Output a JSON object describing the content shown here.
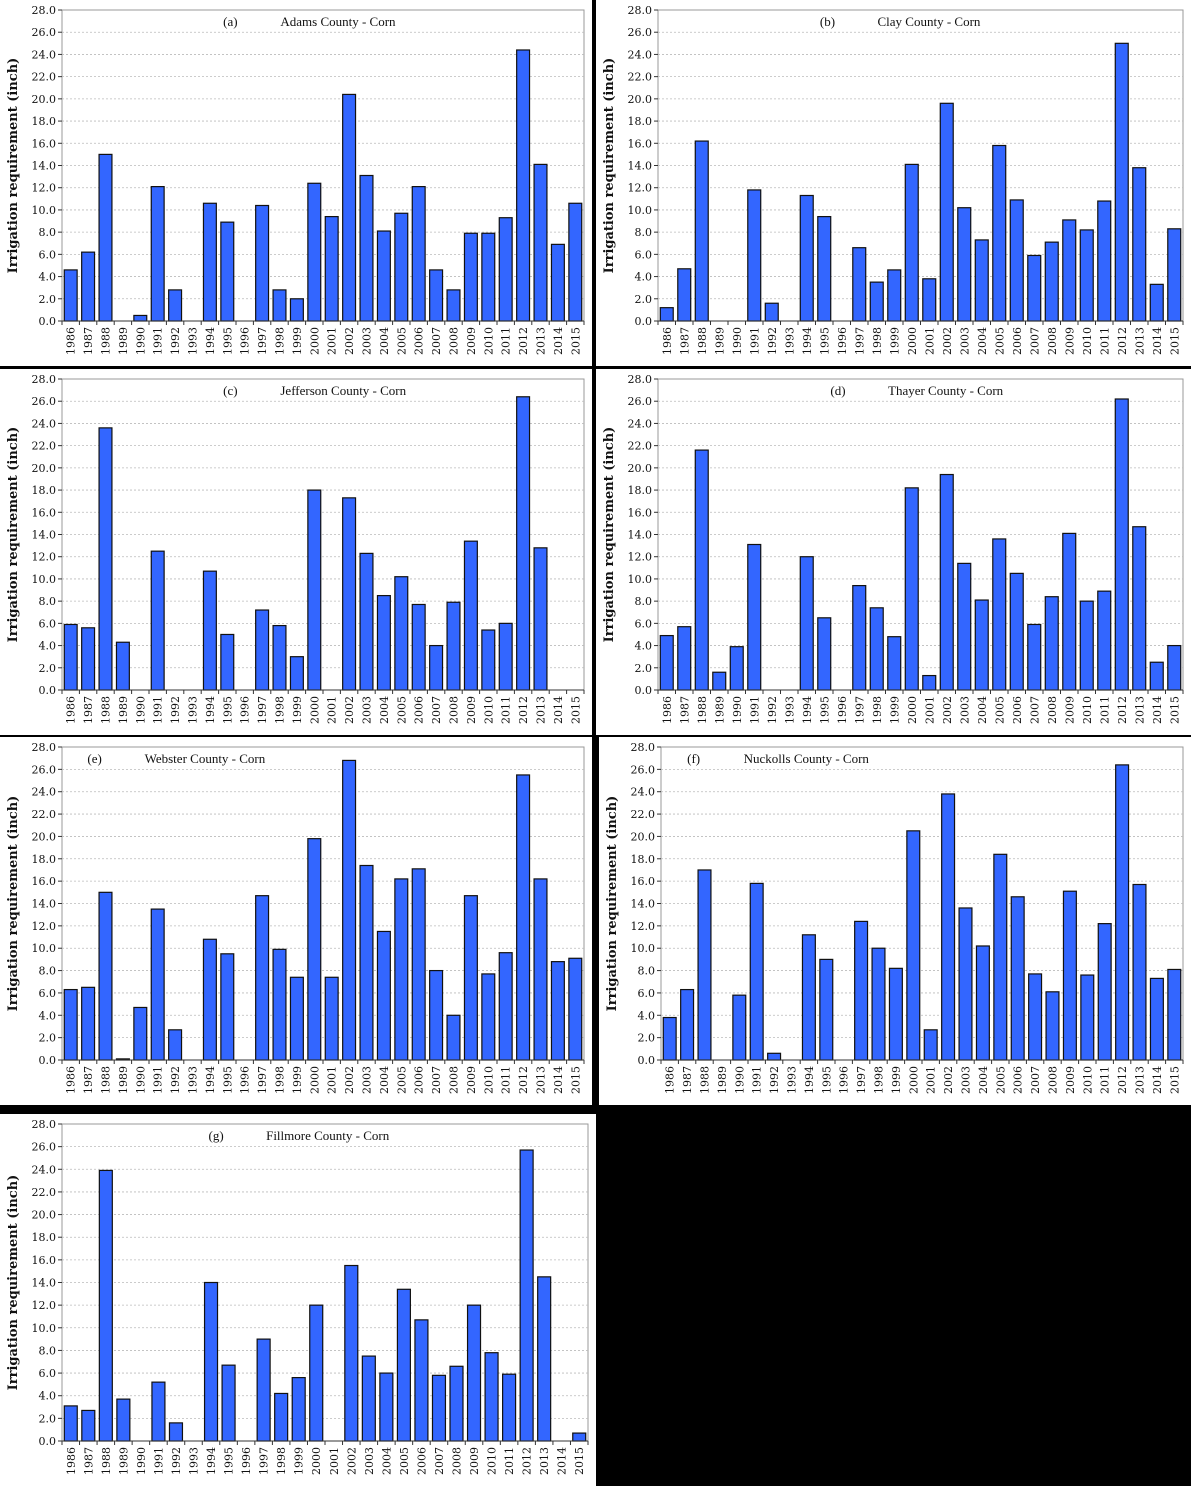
{
  "figure": {
    "ylabel": "Irrigation requirement (inch)",
    "bar_color": "#3366FF",
    "bar_stroke": "#111111",
    "grid_color": "#BBBBBB",
    "yticks": [
      "0.0",
      "2.0",
      "4.0",
      "6.0",
      "8.0",
      "10.0",
      "12.0",
      "14.0",
      "16.0",
      "18.0",
      "20.0",
      "22.0",
      "24.0",
      "26.0",
      "28.0"
    ]
  },
  "chart_data": [
    {
      "type": "bar",
      "panel": "(a)",
      "title": "Adams County - Corn",
      "xlabel": "",
      "ylabel": "Irrigation requirement (inch)",
      "ylim": [
        0,
        28
      ],
      "grid": true,
      "categories": [
        "1986",
        "1987",
        "1988",
        "1989",
        "1990",
        "1991",
        "1992",
        "1993",
        "1994",
        "1995",
        "1996",
        "1997",
        "1998",
        "1999",
        "2000",
        "2001",
        "2002",
        "2003",
        "2004",
        "2005",
        "2006",
        "2007",
        "2008",
        "2009",
        "2010",
        "2011",
        "2012",
        "2013",
        "2014",
        "2015"
      ],
      "values": [
        4.6,
        6.2,
        15.0,
        0,
        0.5,
        12.1,
        2.8,
        0,
        10.6,
        8.9,
        0,
        10.4,
        2.8,
        2.0,
        12.4,
        9.4,
        20.4,
        13.1,
        8.1,
        9.7,
        12.1,
        4.6,
        2.8,
        7.9,
        7.9,
        9.3,
        24.4,
        14.1,
        6.9,
        10.6
      ]
    },
    {
      "type": "bar",
      "panel": "(b)",
      "title": "Clay County - Corn",
      "xlabel": "",
      "ylabel": "Irrigation requirement (inch)",
      "ylim": [
        0,
        28
      ],
      "grid": true,
      "categories": [
        "1986",
        "1987",
        "1988",
        "1989",
        "1990",
        "1991",
        "1992",
        "1993",
        "1994",
        "1995",
        "1996",
        "1997",
        "1998",
        "1999",
        "2000",
        "2001",
        "2002",
        "2003",
        "2004",
        "2005",
        "2006",
        "2007",
        "2008",
        "2009",
        "2010",
        "2011",
        "2012",
        "2013",
        "2014",
        "2015"
      ],
      "values": [
        1.2,
        4.7,
        16.2,
        0,
        0,
        11.8,
        1.6,
        0,
        11.3,
        9.4,
        0,
        6.6,
        3.5,
        4.6,
        14.1,
        3.8,
        19.6,
        10.2,
        7.3,
        15.8,
        10.9,
        5.9,
        7.1,
        9.1,
        8.2,
        10.8,
        25.0,
        13.8,
        3.3,
        8.3
      ]
    },
    {
      "type": "bar",
      "panel": "(c)",
      "title": "Jefferson County - Corn",
      "xlabel": "",
      "ylabel": "Irrigation requirement (inch)",
      "ylim": [
        0,
        28
      ],
      "grid": true,
      "categories": [
        "1986",
        "1987",
        "1988",
        "1989",
        "1990",
        "1991",
        "1992",
        "1993",
        "1994",
        "1995",
        "1996",
        "1997",
        "1998",
        "1999",
        "2000",
        "2001",
        "2002",
        "2003",
        "2004",
        "2005",
        "2006",
        "2007",
        "2008",
        "2009",
        "2010",
        "2011",
        "2012",
        "2013",
        "2014",
        "2015"
      ],
      "values": [
        5.9,
        5.6,
        23.6,
        4.3,
        0,
        12.5,
        0,
        0,
        10.7,
        5.0,
        0,
        7.2,
        5.8,
        3.0,
        18.0,
        0,
        17.3,
        12.3,
        8.5,
        10.2,
        7.7,
        4.0,
        7.9,
        13.4,
        5.4,
        6.0,
        26.4,
        12.8,
        0,
        0
      ]
    },
    {
      "type": "bar",
      "panel": "(d)",
      "title": "Thayer County - Corn",
      "xlabel": "",
      "ylabel": "Irrigation requirement (inch)",
      "ylim": [
        0,
        28
      ],
      "grid": true,
      "categories": [
        "1986",
        "1987",
        "1988",
        "1989",
        "1990",
        "1991",
        "1992",
        "1993",
        "1994",
        "1995",
        "1996",
        "1997",
        "1998",
        "1999",
        "2000",
        "2001",
        "2002",
        "2003",
        "2004",
        "2005",
        "2006",
        "2007",
        "2008",
        "2009",
        "2010",
        "2011",
        "2012",
        "2013",
        "2014",
        "2015"
      ],
      "values": [
        4.9,
        5.7,
        21.6,
        1.6,
        3.9,
        13.1,
        0,
        0,
        12.0,
        6.5,
        0,
        9.4,
        7.4,
        4.8,
        18.2,
        1.3,
        19.4,
        11.4,
        8.1,
        13.6,
        10.5,
        5.9,
        8.4,
        14.1,
        8.0,
        8.9,
        26.2,
        14.7,
        2.5,
        4.0
      ]
    },
    {
      "type": "bar",
      "panel": "(e)",
      "title": "Webster County - Corn",
      "xlabel": "",
      "ylabel": "Irrigation requirement (inch)",
      "ylim": [
        0,
        28
      ],
      "grid": true,
      "categories": [
        "1986",
        "1987",
        "1988",
        "1989",
        "1990",
        "1991",
        "1992",
        "1993",
        "1994",
        "1995",
        "1996",
        "1997",
        "1998",
        "1999",
        "2000",
        "2001",
        "2002",
        "2003",
        "2004",
        "2005",
        "2006",
        "2007",
        "2008",
        "2009",
        "2010",
        "2011",
        "2012",
        "2013",
        "2014",
        "2015"
      ],
      "values": [
        6.3,
        6.5,
        15.0,
        0.1,
        4.7,
        13.5,
        2.7,
        0,
        10.8,
        9.5,
        0,
        14.7,
        9.9,
        7.4,
        19.8,
        7.4,
        26.8,
        17.4,
        11.5,
        16.2,
        17.1,
        8.0,
        4.0,
        14.7,
        7.7,
        9.6,
        25.5,
        16.2,
        8.8,
        9.1
      ]
    },
    {
      "type": "bar",
      "panel": "(f)",
      "title": "Nuckolls County - Corn",
      "xlabel": "",
      "ylabel": "Irrigation requirement (inch)",
      "ylim": [
        0,
        28
      ],
      "grid": true,
      "categories": [
        "1986",
        "1987",
        "1988",
        "1989",
        "1990",
        "1991",
        "1992",
        "1993",
        "1994",
        "1995",
        "1996",
        "1997",
        "1998",
        "1999",
        "2000",
        "2001",
        "2002",
        "2003",
        "2004",
        "2005",
        "2006",
        "2007",
        "2008",
        "2009",
        "2010",
        "2011",
        "2012",
        "2013",
        "2014",
        "2015"
      ],
      "values": [
        3.8,
        6.3,
        17.0,
        0,
        5.8,
        15.8,
        0.6,
        0,
        11.2,
        9.0,
        0,
        12.4,
        10.0,
        8.2,
        20.5,
        2.7,
        23.8,
        13.6,
        10.2,
        18.4,
        14.6,
        7.7,
        6.1,
        15.1,
        7.6,
        12.2,
        26.4,
        15.7,
        7.3,
        8.1
      ]
    },
    {
      "type": "bar",
      "panel": "(g)",
      "title": "Fillmore County - Corn",
      "xlabel": "",
      "ylabel": "Irrigation requirement (inch)",
      "ylim": [
        0,
        28
      ],
      "grid": true,
      "categories": [
        "1986",
        "1987",
        "1988",
        "1989",
        "1990",
        "1991",
        "1992",
        "1993",
        "1994",
        "1995",
        "1996",
        "1997",
        "1998",
        "1999",
        "2000",
        "2001",
        "2002",
        "2003",
        "2004",
        "2005",
        "2006",
        "2007",
        "2008",
        "2009",
        "2010",
        "2011",
        "2012",
        "2013",
        "2014",
        "2015"
      ],
      "values": [
        3.1,
        2.7,
        23.9,
        3.7,
        0,
        5.2,
        1.6,
        0,
        14.0,
        6.7,
        0,
        9.0,
        4.2,
        5.6,
        12.0,
        0,
        15.5,
        7.5,
        6.0,
        13.4,
        10.7,
        5.8,
        6.6,
        12.0,
        7.8,
        5.9,
        25.7,
        14.5,
        0,
        0.7
      ]
    }
  ]
}
